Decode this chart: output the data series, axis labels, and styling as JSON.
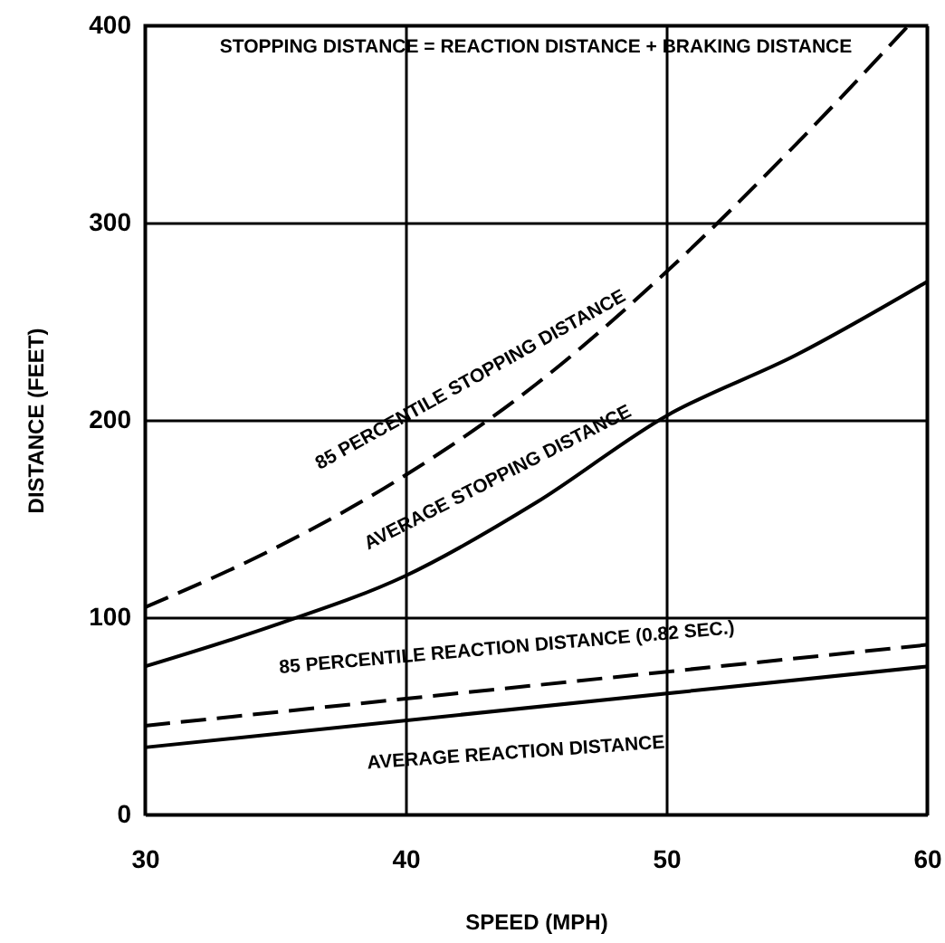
{
  "chart_data": {
    "type": "line",
    "xlabel": "SPEED (MPH)",
    "ylabel": "DISTANCE (FEET)",
    "xlim": [
      30,
      60
    ],
    "ylim": [
      0,
      400
    ],
    "xticks": [
      30,
      40,
      50,
      60
    ],
    "yticks": [
      0,
      100,
      200,
      300,
      400
    ],
    "grid": true,
    "marker": "none",
    "series": [
      {
        "color": "#000000",
        "line_style": "dashed",
        "x": [
          30,
          35,
          40,
          45,
          50,
          55,
          59.3
        ],
        "values": [
          105,
          135,
          172,
          218,
          275,
          340,
          400
        ]
      },
      {
        "color": "#000000",
        "line_style": "solid",
        "x": [
          30,
          35,
          40,
          45,
          50,
          55,
          60
        ],
        "values": [
          75,
          96,
          121,
          158,
          202,
          233,
          270
        ]
      },
      {
        "color": "#000000",
        "line_style": "dashed",
        "x": [
          30,
          60
        ],
        "values": [
          45,
          86
        ]
      },
      {
        "color": "#000000",
        "line_style": "solid",
        "x": [
          30,
          60
        ],
        "values": [
          34,
          75
        ]
      }
    ],
    "annotations": [
      "STOPPING DISTANCE = REACTION DISTANCE + BRAKING DISTANCE",
      "85 PERCENTILE STOPPING DISTANCE",
      "AVERAGE STOPPING DISTANCE",
      "85 PERCENTILE REACTION DISTANCE (0.82 SEC.)",
      "AVERAGE REACTION DISTANCE"
    ]
  }
}
